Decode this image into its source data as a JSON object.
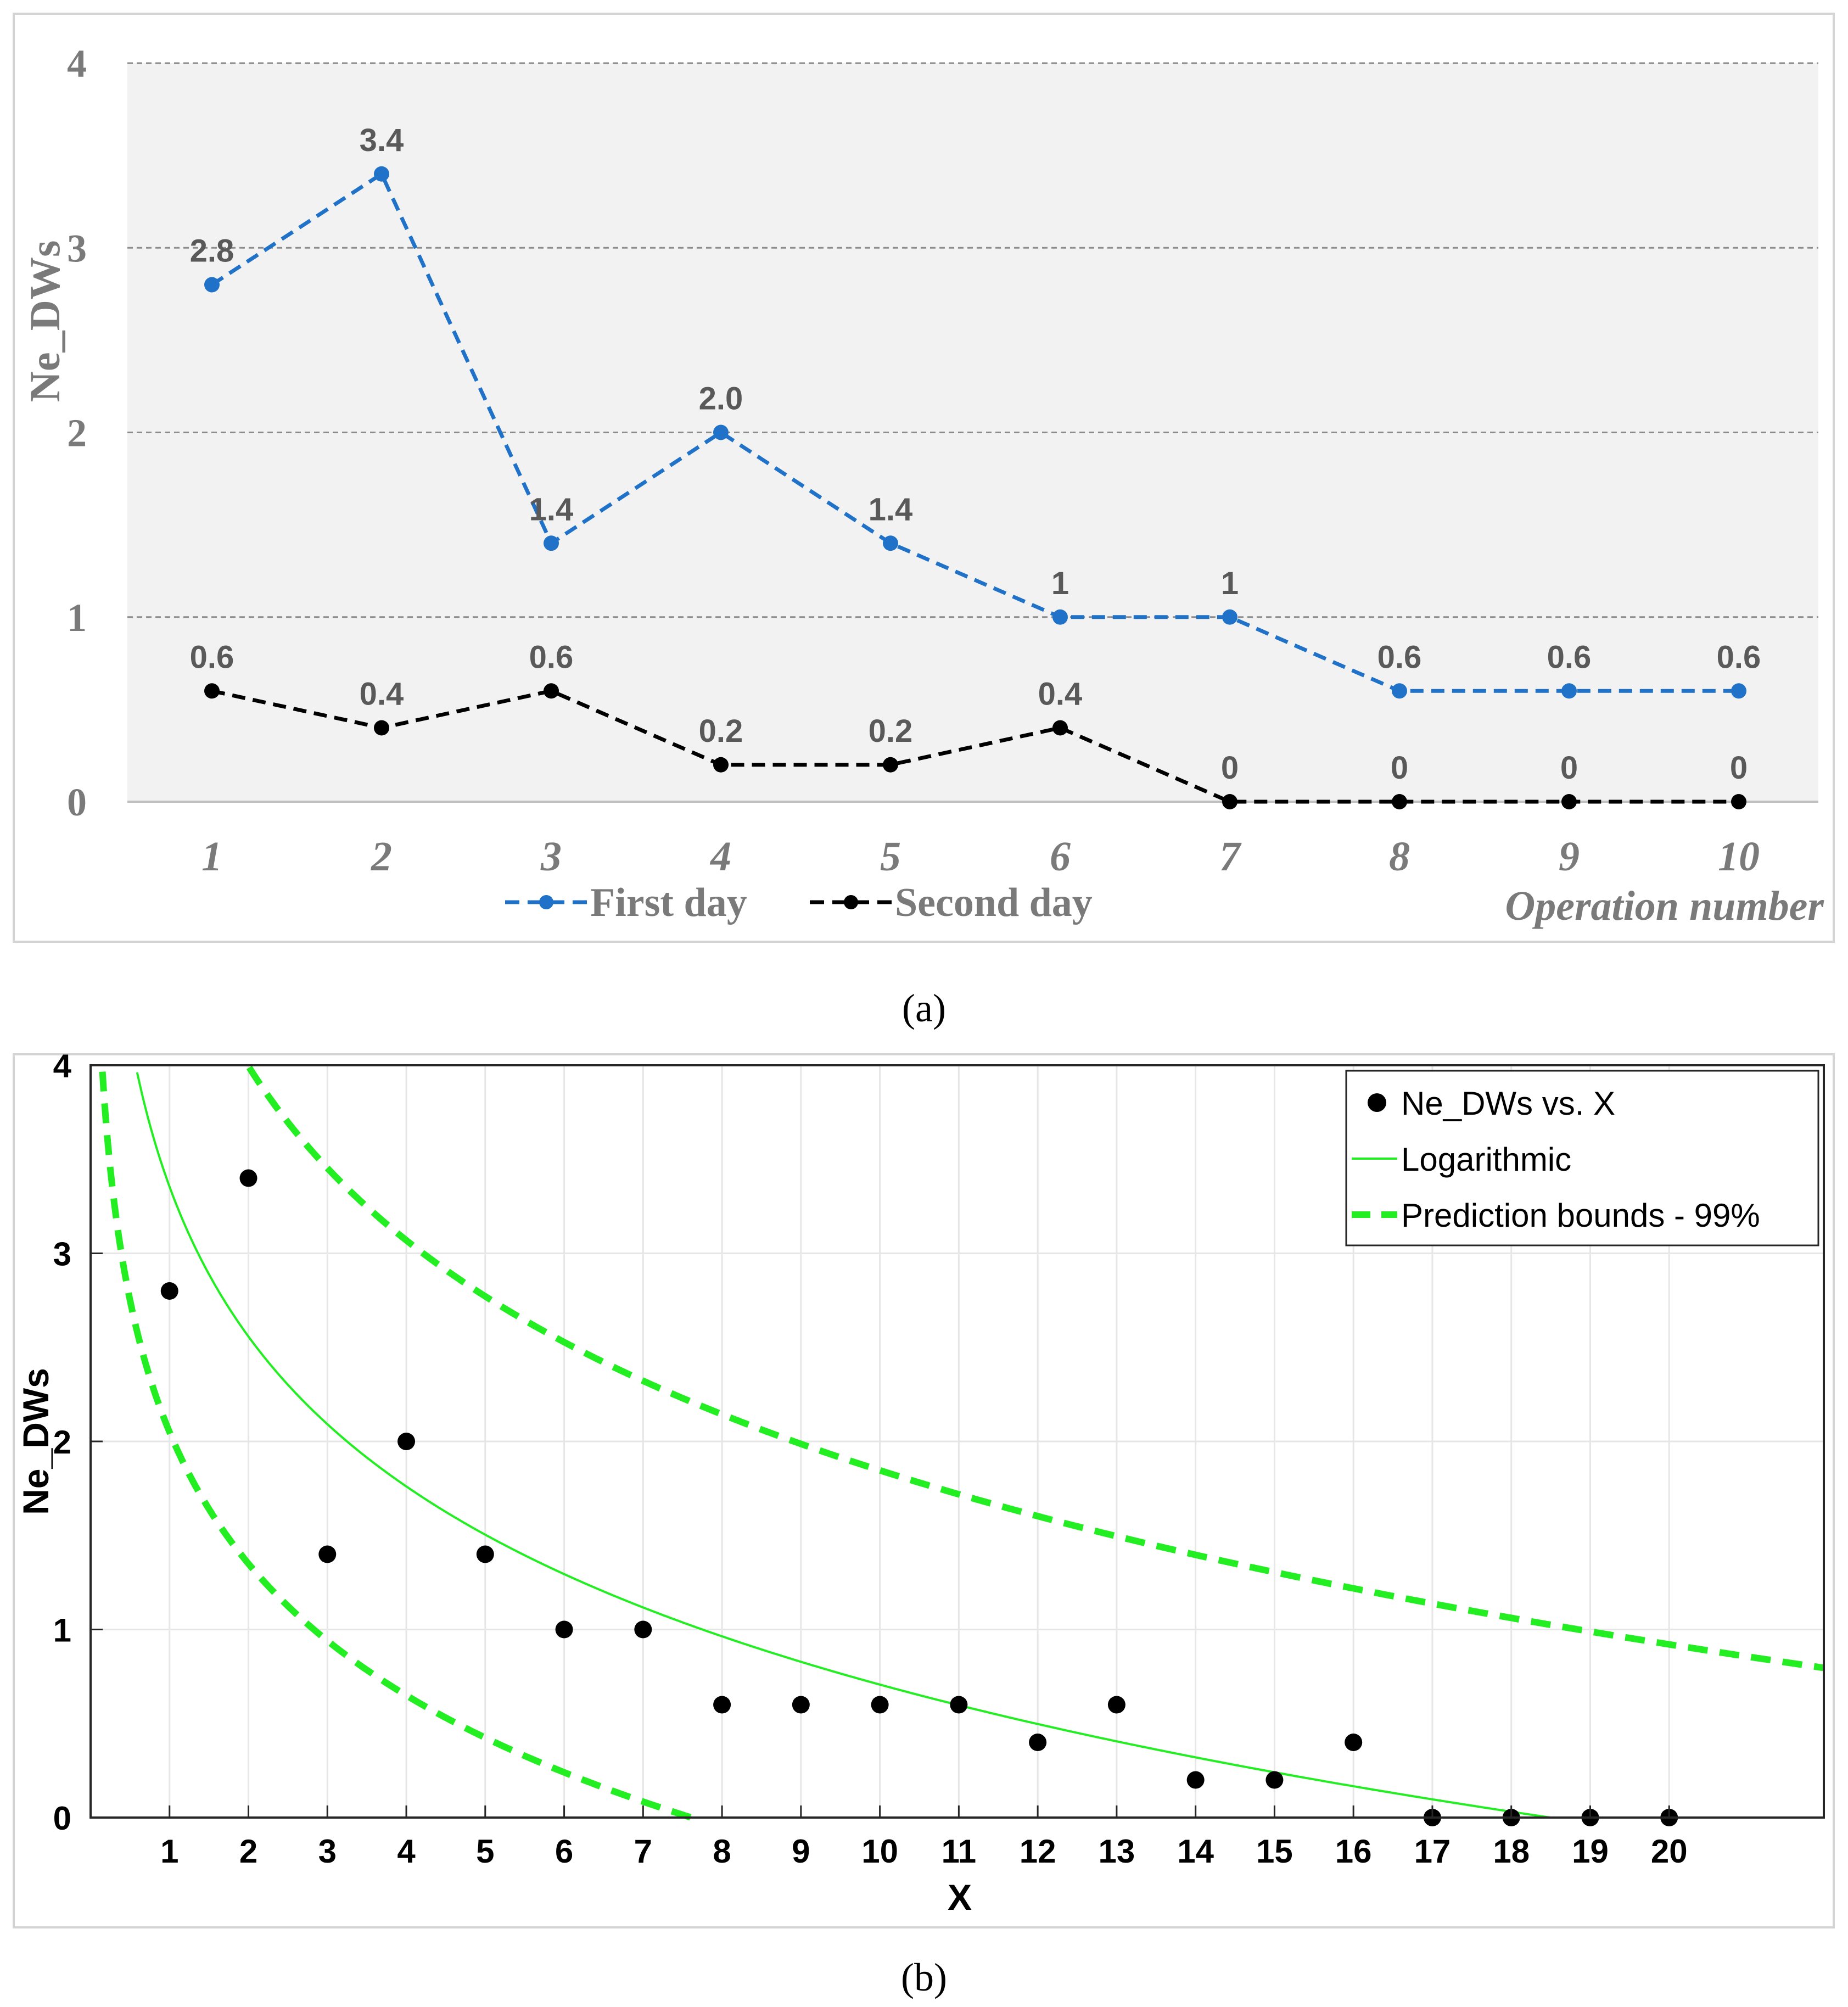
{
  "chart_data": [
    {
      "type": "line",
      "panel_label": "(a)",
      "title": "",
      "xlabel": "Operation number",
      "ylabel": "Ne_DWs",
      "categories": [
        "1",
        "2",
        "3",
        "4",
        "5",
        "6",
        "7",
        "8",
        "9",
        "10"
      ],
      "yticks": [
        "0",
        "1",
        "2",
        "3",
        "4"
      ],
      "ylim": [
        0,
        4
      ],
      "grid": "horizontal dashed",
      "legend": "bottom-center",
      "series": [
        {
          "name": "First day",
          "color": "#1f72c8",
          "values": [
            2.8,
            3.4,
            1.4,
            2.0,
            1.4,
            1,
            1,
            0.6,
            0.6,
            0.6
          ],
          "labels": [
            "2.8",
            "3.4",
            "1.4",
            "2.0",
            "1.4",
            "1",
            "1",
            "0.6",
            "0.6",
            "0.6"
          ]
        },
        {
          "name": "Second day",
          "color": "#000000",
          "values": [
            0.6,
            0.4,
            0.6,
            0.2,
            0.2,
            0.4,
            0,
            0,
            0,
            0
          ],
          "labels": [
            "0.6",
            "0.4",
            "0.6",
            "0.2",
            "0.2",
            "0.4",
            "0",
            "0",
            "0",
            "0"
          ]
        }
      ]
    },
    {
      "type": "scatter",
      "panel_label": "(b)",
      "title": "",
      "xlabel": "X",
      "ylabel": "Ne_DWs",
      "xticks": [
        "1",
        "2",
        "3",
        "4",
        "5",
        "6",
        "7",
        "8",
        "9",
        "10",
        "11",
        "12",
        "13",
        "14",
        "15",
        "16",
        "17",
        "18",
        "19",
        "20"
      ],
      "yticks": [
        "0",
        "1",
        "2",
        "3",
        "4"
      ],
      "xlim": [
        0,
        21.96
      ],
      "ylim": [
        0,
        4
      ],
      "grid": "both",
      "legend": "top-right",
      "points": {
        "name": "Ne_DWs vs. X",
        "color": "#000000",
        "x": [
          1,
          2,
          3,
          4,
          5,
          6,
          7,
          8,
          9,
          10,
          11,
          12,
          13,
          14,
          15,
          16,
          17,
          18,
          19,
          20
        ],
        "y": [
          2.8,
          3.4,
          1.4,
          2.0,
          1.4,
          1,
          1,
          0.6,
          0.6,
          0.6,
          0.6,
          0.4,
          0.6,
          0.2,
          0.2,
          0.4,
          0,
          0,
          0,
          0
        ]
      },
      "fit": {
        "name": "Logarithmic",
        "color": "#22ee22",
        "model": "y = a + b*ln(x)",
        "a": 3.355,
        "b": -1.15
      },
      "bounds": {
        "name": "Prediction bounds - 99%",
        "color": "#22ee22",
        "upper": {
          "a": 4.92,
          "b": -1.335
        },
        "lower": {
          "a": 2.05,
          "b": -1.01
        }
      }
    }
  ]
}
